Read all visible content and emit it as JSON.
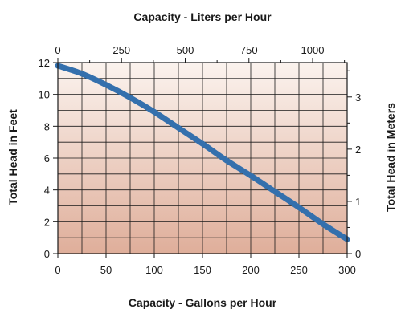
{
  "chart_data": {
    "type": "line",
    "title": "",
    "xlabel_bottom": "Capacity - Gallons per Hour",
    "xlabel_top": "Capacity - Liters per Hour",
    "ylabel_left": "Total Head in Feet",
    "ylabel_right": "Total Head in Meters",
    "x_bottom_ticks": [
      "0",
      "50",
      "100",
      "150",
      "200",
      "250",
      "300"
    ],
    "x_top_ticks": [
      "0",
      "250",
      "500",
      "750",
      "1000"
    ],
    "y_left_ticks": [
      "0",
      "2",
      "4",
      "6",
      "8",
      "10",
      "12"
    ],
    "y_right_ticks": [
      "0",
      "1",
      "2",
      "3"
    ],
    "xlim": [
      0,
      300
    ],
    "ylim": [
      0,
      12
    ],
    "x_top_lim": [
      0,
      1135.6
    ],
    "y_right_lim": [
      0,
      3.6576
    ],
    "grid": true,
    "series": [
      {
        "color": "#3470ad",
        "x": [
          0,
          25,
          50,
          75,
          100,
          125,
          150,
          175,
          200,
          225,
          250,
          275,
          300
        ],
        "y": [
          11.8,
          11.3,
          10.6,
          9.8,
          8.9,
          7.9,
          6.9,
          5.85,
          4.9,
          3.9,
          2.9,
          1.85,
          0.9
        ]
      }
    ],
    "background_gradient": [
      "#fbf3ee",
      "#dfae9a"
    ]
  }
}
